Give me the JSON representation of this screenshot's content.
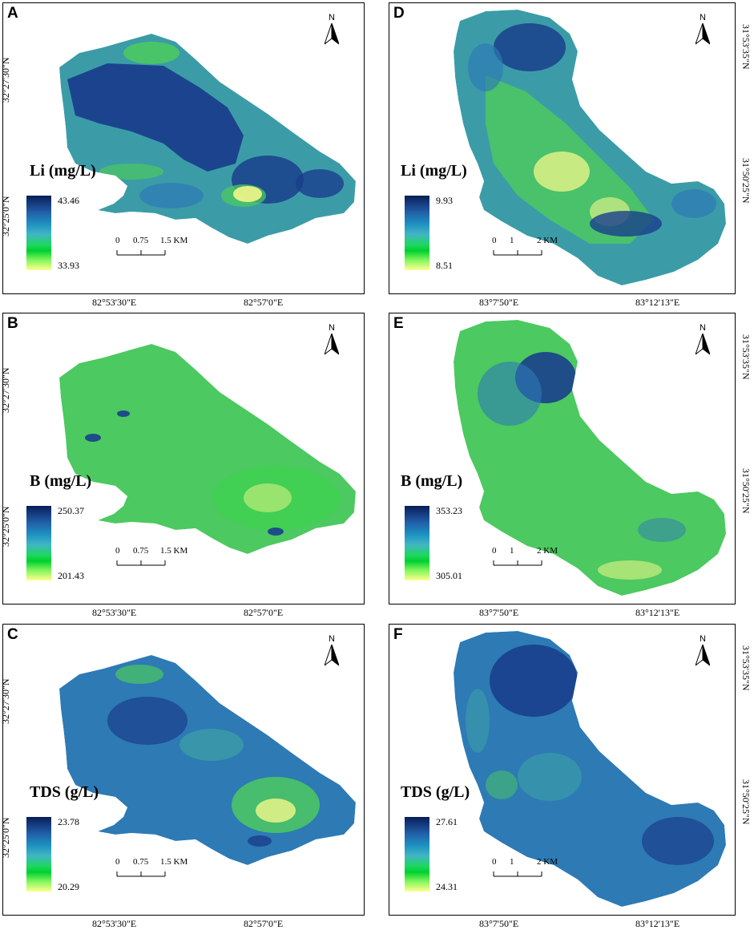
{
  "panels": [
    {
      "letter": "A",
      "parameter": "Li (mg/L)",
      "legend_max": "43.46",
      "legend_min": "33.93",
      "scale_labels": [
        "0",
        "0.75",
        "1.5 KM"
      ],
      "lon_labels": [
        "82°53'30\"E",
        "82°57'0\"E"
      ],
      "lat_labels": [
        "32°27'30\"N",
        "32°25'0\"N"
      ],
      "north": "N"
    },
    {
      "letter": "D",
      "parameter": "Li (mg/L)",
      "legend_max": "9.93",
      "legend_min": "8.51",
      "scale_labels": [
        "0",
        "1",
        "2 KM"
      ],
      "lon_labels": [
        "83°7'50\"E",
        "83°12'13\"E"
      ],
      "lat_labels": [
        "31°53'35\"N",
        "31°50'25\"N"
      ],
      "north": "N"
    },
    {
      "letter": "B",
      "parameter": "B (mg/L)",
      "legend_max": "250.37",
      "legend_min": "201.43",
      "scale_labels": [
        "0",
        "0.75",
        "1.5 KM"
      ],
      "lon_labels": [
        "82°53'30\"E",
        "82°57'0\"E"
      ],
      "lat_labels": [
        "32°27'30\"N",
        "32°25'0\"N"
      ],
      "north": "N"
    },
    {
      "letter": "E",
      "parameter": "B (mg/L)",
      "legend_max": "353.23",
      "legend_min": "305.01",
      "scale_labels": [
        "0",
        "1",
        "2 KM"
      ],
      "lon_labels": [
        "83°7'50\"E",
        "83°12'13\"E"
      ],
      "lat_labels": [
        "31°53'35\"N",
        "31°50'25\"N"
      ],
      "north": "N"
    },
    {
      "letter": "C",
      "parameter": "TDS (g/L)",
      "legend_max": "23.78",
      "legend_min": "20.29",
      "scale_labels": [
        "0",
        "0.75",
        "1.5 KM"
      ],
      "lon_labels": [
        "82°53'30\"E",
        "82°57'0\"E"
      ],
      "lat_labels": [
        "32°27'30\"N",
        "32°25'0\"N"
      ],
      "north": "N"
    },
    {
      "letter": "F",
      "parameter": "TDS (g/L)",
      "legend_max": "27.61",
      "legend_min": "24.31",
      "scale_labels": [
        "0",
        "1",
        "2 KM"
      ],
      "lon_labels": [
        "83°7'50\"E",
        "83°12'13\"E"
      ],
      "lat_labels": [
        "31°53'35\"N",
        "31°50'25\"N"
      ],
      "north": "N"
    }
  ],
  "colors": {
    "dark_blue": "#1a3f8c",
    "mid_blue": "#2d7ab5",
    "teal": "#3b9ca8",
    "green": "#4cc960",
    "bright_green": "#35d845",
    "yellow": "#f2f78a"
  }
}
